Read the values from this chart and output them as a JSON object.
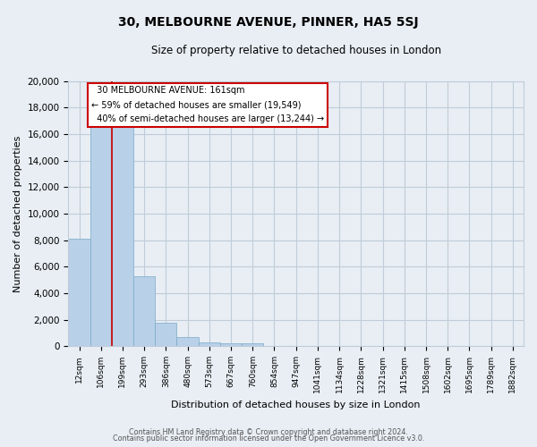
{
  "title": "30, MELBOURNE AVENUE, PINNER, HA5 5SJ",
  "subtitle": "Size of property relative to detached houses in London",
  "bar_labels": [
    "12sqm",
    "106sqm",
    "199sqm",
    "293sqm",
    "386sqm",
    "480sqm",
    "573sqm",
    "667sqm",
    "760sqm",
    "854sqm",
    "947sqm",
    "1041sqm",
    "1134sqm",
    "1228sqm",
    "1321sqm",
    "1415sqm",
    "1508sqm",
    "1602sqm",
    "1695sqm",
    "1789sqm",
    "1882sqm"
  ],
  "bar_values": [
    8100,
    16600,
    16600,
    5300,
    1750,
    700,
    320,
    200,
    200,
    0,
    0,
    0,
    0,
    0,
    0,
    0,
    0,
    0,
    0,
    0,
    0
  ],
  "bar_color": "#b8d0e8",
  "bar_edge_color": "#7aaac8",
  "property_size": "161sqm",
  "property_name": "30 MELBOURNE AVENUE",
  "pct_smaller": 59,
  "n_smaller": 19549,
  "pct_larger_semi": 40,
  "n_larger_semi": 13244,
  "ylabel": "Number of detached properties",
  "xlabel": "Distribution of detached houses by size in London",
  "ylim": [
    0,
    20000
  ],
  "yticks": [
    0,
    2000,
    4000,
    6000,
    8000,
    10000,
    12000,
    14000,
    16000,
    18000,
    20000
  ],
  "annotation_box_color": "#ffffff",
  "annotation_box_edge": "#cc0000",
  "red_line_color": "#cc0000",
  "footer_line1": "Contains HM Land Registry data © Crown copyright and database right 2024.",
  "footer_line2": "Contains public sector information licensed under the Open Government Licence v3.0.",
  "background_color": "#e8eef4",
  "plot_bg_color": "#e8eef4",
  "grid_color": "#c0ccd8"
}
